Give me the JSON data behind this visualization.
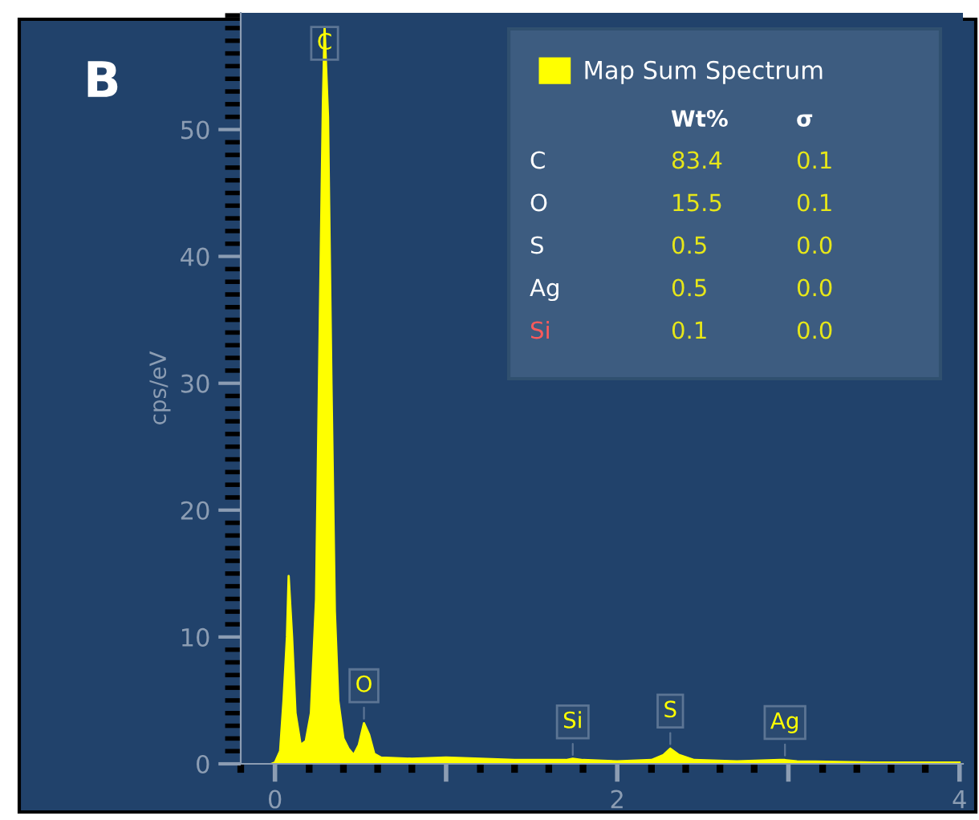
{
  "chart_data": {
    "type": "area",
    "ylabel": "cps/eV",
    "xlim": [
      -0.2,
      4.02
    ],
    "ylim": [
      0,
      59.2
    ],
    "xticks": [
      0,
      {
        "value": 1,
        "label": null
      },
      2,
      {
        "value": 3,
        "label": null
      },
      4
    ],
    "yticks": [
      0,
      10,
      20,
      30,
      40,
      50
    ],
    "grid": false,
    "legend": "top right",
    "series": [
      {
        "name": "Map Sum Spectrum",
        "color": "#ffff00",
        "x": [
          -0.02,
          0.0,
          0.03,
          0.05,
          0.07,
          0.08,
          0.1,
          0.12,
          0.15,
          0.18,
          0.21,
          0.24,
          0.26,
          0.28,
          0.29,
          0.31,
          0.33,
          0.35,
          0.37,
          0.4,
          0.43,
          0.46,
          0.49,
          0.52,
          0.55,
          0.58,
          0.62,
          0.8,
          1.0,
          1.2,
          1.4,
          1.6,
          1.7,
          1.74,
          1.8,
          2.0,
          2.2,
          2.27,
          2.31,
          2.36,
          2.45,
          2.7,
          2.95,
          2.98,
          3.05,
          3.5,
          4.0
        ],
        "values": [
          0,
          0.1,
          1,
          5,
          10,
          14.8,
          10,
          4,
          1.5,
          1.8,
          4,
          13,
          33,
          52,
          58,
          51,
          30,
          12,
          5,
          2,
          1.2,
          0.7,
          1.5,
          3.2,
          2.3,
          0.8,
          0.5,
          0.4,
          0.5,
          0.4,
          0.3,
          0.3,
          0.3,
          0.4,
          0.3,
          0.2,
          0.3,
          0.7,
          1.2,
          0.7,
          0.3,
          0.2,
          0.3,
          0.3,
          0.2,
          0.1,
          0.1
        ]
      }
    ],
    "annotations": [
      "B",
      {
        "text": "C",
        "x": 0.29,
        "y": 58
      },
      {
        "text": "O",
        "x": 0.52,
        "y": 3.2
      },
      {
        "text": "Si",
        "x": 1.74,
        "y": 0.35
      },
      {
        "text": "S",
        "x": 2.31,
        "y": 1.2
      },
      {
        "text": "Ag",
        "x": 2.98,
        "y": 0.3
      },
      "Wt%",
      "σ",
      "C",
      "83.4",
      "0.1",
      "O",
      "15.5",
      "0.1",
      "S",
      "0.5",
      "0.0",
      "Ag",
      "0.5",
      "0.0",
      "Si",
      "0.1",
      "0.0"
    ]
  }
}
